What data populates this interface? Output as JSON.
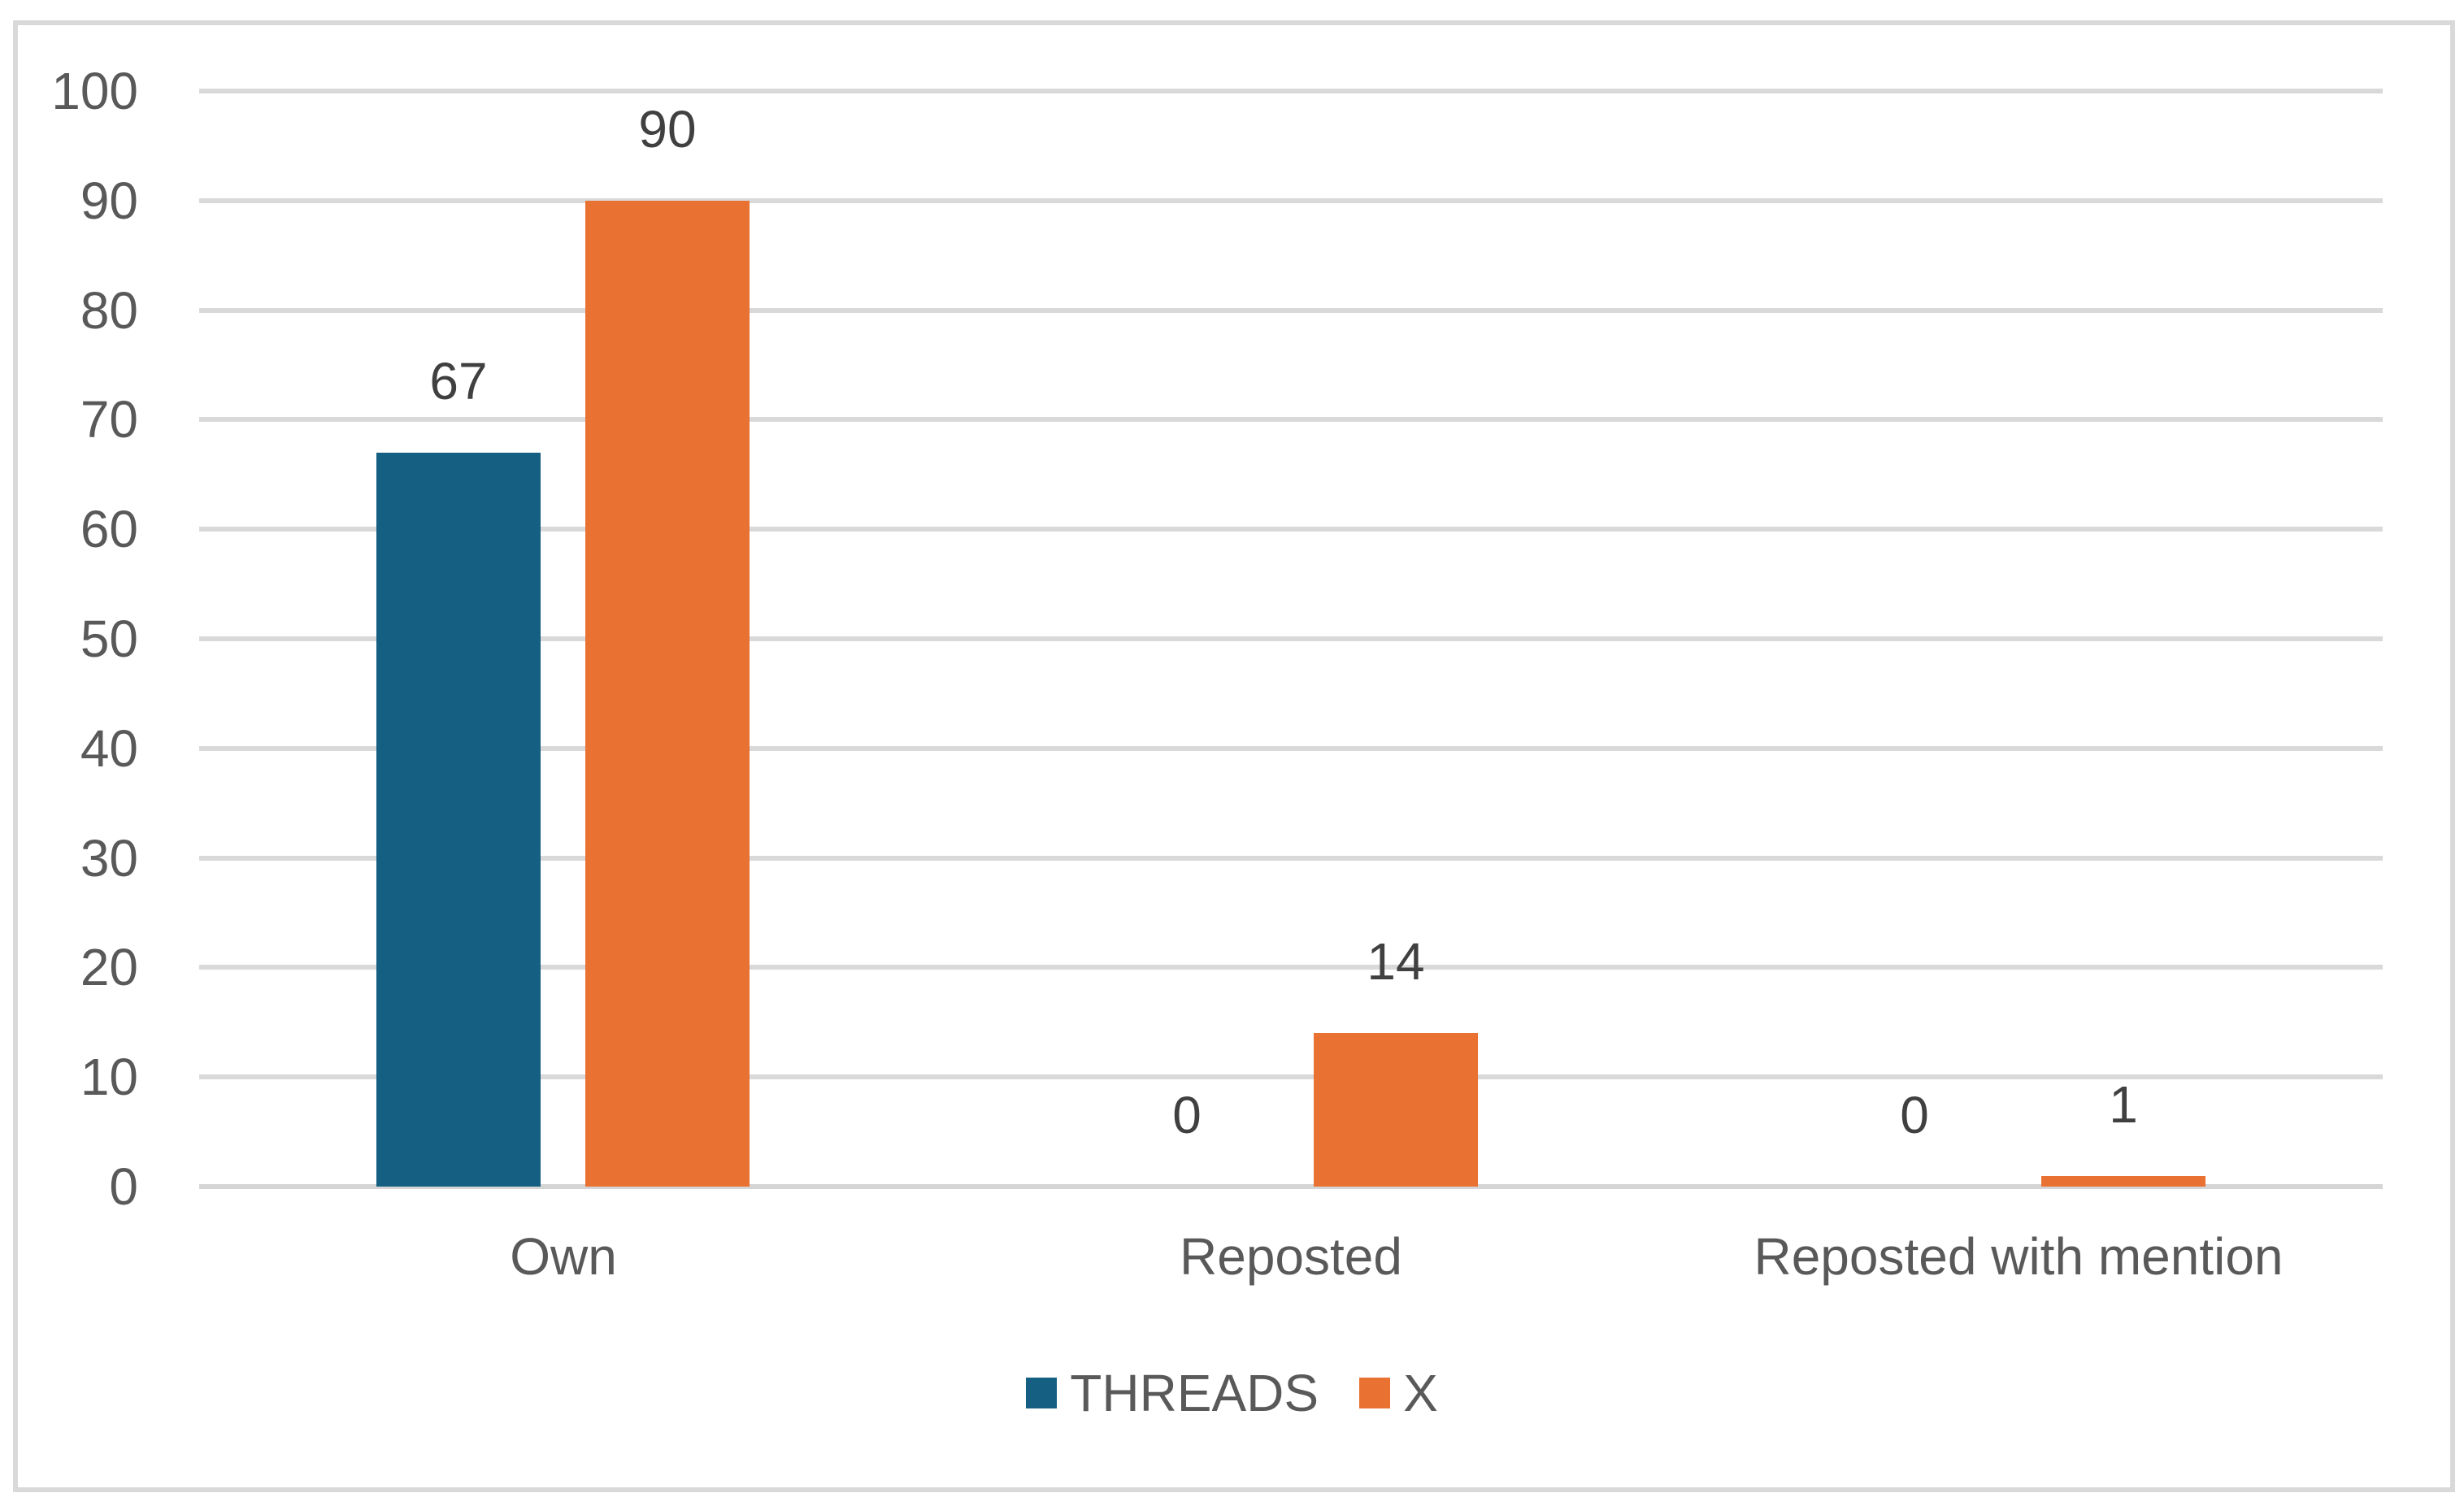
{
  "chart_data": {
    "type": "bar",
    "categories": [
      "Own",
      "Reposted",
      "Reposted with mention"
    ],
    "series": [
      {
        "name": "THREADS",
        "color": "#156082",
        "values": [
          67,
          0,
          0
        ]
      },
      {
        "name": "X",
        "color": "#E97132",
        "values": [
          90,
          14,
          1
        ]
      }
    ],
    "title": "",
    "xlabel": "",
    "ylabel": "",
    "ylim": [
      0,
      100
    ],
    "ytick_step": 10,
    "y_tick_labels": [
      "0",
      "10",
      "20",
      "30",
      "40",
      "50",
      "60",
      "70",
      "80",
      "90",
      "100"
    ],
    "data_labels": [
      "67",
      "90",
      "0",
      "14",
      "0",
      "1"
    ],
    "grid": true,
    "legend_position": "bottom"
  },
  "colors": {
    "background": "#FFFFFF",
    "frame_border": "#D9D9D9",
    "gridline": "#D9D9D9",
    "axis_line": "#D5D5D5",
    "tick_text": "#595959",
    "category_text": "#595959",
    "legend_text": "#595959",
    "value_label_text": "#404040"
  }
}
